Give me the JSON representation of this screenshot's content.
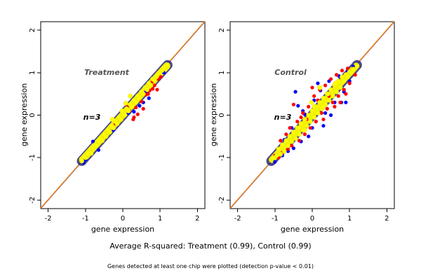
{
  "chart_data": [
    {
      "type": "scatter",
      "title": "Treatment",
      "annotation": "n=3",
      "xlabel": "gene expression",
      "ylabel": "gene expression",
      "xlim": [
        -2.2,
        2.2
      ],
      "ylim": [
        -2.2,
        2.2
      ],
      "xticks": [
        -2,
        -1,
        0,
        1,
        2
      ],
      "yticks": [
        -2,
        -1,
        0,
        1,
        2
      ],
      "reference_line": {
        "slope": 1,
        "intercept": 0,
        "color": "#ff8c00"
      },
      "series": [
        {
          "color": "#0000ff",
          "points": [
            [
              -1.0,
              -1.05
            ],
            [
              -0.8,
              -0.62
            ],
            [
              -0.25,
              -0.35
            ],
            [
              0.3,
              0.08
            ],
            [
              0.45,
              0.22
            ],
            [
              0.62,
              0.55
            ],
            [
              -1.05,
              -1.12
            ],
            [
              0.7,
              0.4
            ],
            [
              -0.65,
              -0.82
            ],
            [
              0.55,
              0.3
            ],
            [
              1.1,
              1.0
            ],
            [
              0.15,
              0.05
            ]
          ]
        },
        {
          "color": "#ff0000",
          "points": [
            [
              0.8,
              0.62
            ],
            [
              0.62,
              0.48
            ],
            [
              0.5,
              0.32
            ],
            [
              0.35,
              0.18
            ],
            [
              0.72,
              0.58
            ],
            [
              0.3,
              -0.05
            ],
            [
              0.95,
              0.85
            ],
            [
              0.6,
              0.65
            ],
            [
              0.4,
              0.02
            ],
            [
              1.02,
              0.9
            ],
            [
              0.18,
              0.1
            ],
            [
              0.85,
              0.7
            ],
            [
              0.55,
              0.15
            ],
            [
              0.92,
              0.6
            ],
            [
              0.45,
              0.4
            ],
            [
              0.28,
              -0.1
            ],
            [
              0.12,
              0.2
            ],
            [
              0.78,
              0.78
            ],
            [
              -0.2,
              -0.2
            ],
            [
              0.68,
              0.5
            ]
          ]
        },
        {
          "color": "#ffff00",
          "points": [
            [
              -1.1,
              -1.08
            ],
            [
              -1.0,
              -1.0
            ],
            [
              -0.9,
              -0.88
            ],
            [
              -0.85,
              -0.9
            ],
            [
              -0.8,
              -0.75
            ],
            [
              -0.75,
              -0.7
            ],
            [
              -0.7,
              -0.72
            ],
            [
              -0.6,
              -0.55
            ],
            [
              -0.55,
              -0.6
            ],
            [
              -0.5,
              -0.45
            ],
            [
              -0.45,
              -0.5
            ],
            [
              -0.4,
              -0.35
            ],
            [
              -0.35,
              -0.4
            ],
            [
              -0.3,
              -0.25
            ],
            [
              -0.25,
              -0.3
            ],
            [
              -0.2,
              -0.15
            ],
            [
              -0.15,
              -0.2
            ],
            [
              -0.1,
              -0.05
            ],
            [
              -0.05,
              -0.1
            ],
            [
              0.0,
              0.05
            ],
            [
              0.05,
              0.0
            ],
            [
              0.1,
              0.15
            ],
            [
              0.15,
              0.1
            ],
            [
              0.2,
              0.25
            ],
            [
              0.25,
              0.2
            ],
            [
              0.3,
              0.35
            ],
            [
              0.35,
              0.3
            ],
            [
              0.4,
              0.45
            ],
            [
              0.45,
              0.4
            ],
            [
              0.5,
              0.55
            ],
            [
              0.55,
              0.5
            ],
            [
              0.6,
              0.65
            ],
            [
              0.65,
              0.6
            ],
            [
              0.7,
              0.75
            ],
            [
              0.75,
              0.7
            ],
            [
              0.8,
              0.85
            ],
            [
              0.85,
              0.82
            ],
            [
              0.9,
              0.9
            ],
            [
              0.95,
              0.98
            ],
            [
              1.0,
              1.02
            ],
            [
              1.05,
              1.05
            ],
            [
              1.1,
              1.12
            ],
            [
              1.15,
              1.15
            ],
            [
              1.2,
              1.18
            ],
            [
              -0.95,
              -0.9
            ],
            [
              -0.65,
              -0.6
            ],
            [
              -0.02,
              0.1
            ],
            [
              0.2,
              0.45
            ],
            [
              0.08,
              0.28
            ],
            [
              -0.28,
              -0.1
            ]
          ]
        }
      ]
    },
    {
      "type": "scatter",
      "title": "Control",
      "annotation": "n=3",
      "xlabel": "gene expression",
      "ylabel": "gene expression",
      "xlim": [
        -2.2,
        2.2
      ],
      "ylim": [
        -2.2,
        2.2
      ],
      "xticks": [
        -2,
        -1,
        0,
        1,
        2
      ],
      "yticks": [
        -2,
        -1,
        0,
        1,
        2
      ],
      "reference_line": {
        "slope": 1,
        "intercept": 0,
        "color": "#ff8c00"
      },
      "series": [
        {
          "color": "#0000ff",
          "points": [
            [
              -1.0,
              -1.1
            ],
            [
              -0.75,
              -0.58
            ],
            [
              -0.8,
              -0.95
            ],
            [
              -0.5,
              -0.78
            ],
            [
              -0.55,
              -0.3
            ],
            [
              -0.3,
              -0.62
            ],
            [
              -0.2,
              0.02
            ],
            [
              0.0,
              -0.3
            ],
            [
              0.22,
              0.58
            ],
            [
              0.35,
              0.05
            ],
            [
              0.45,
              0.8
            ],
            [
              0.6,
              0.3
            ],
            [
              0.72,
              0.92
            ],
            [
              0.85,
              0.55
            ],
            [
              0.95,
              1.05
            ],
            [
              1.0,
              0.8
            ],
            [
              0.05,
              0.35
            ],
            [
              -0.38,
              0.22
            ],
            [
              -0.45,
              0.55
            ],
            [
              0.5,
              0.0
            ],
            [
              0.78,
              0.3
            ],
            [
              -0.65,
              -0.85
            ],
            [
              0.3,
              -0.25
            ],
            [
              1.1,
              1.15
            ],
            [
              0.9,
              0.3
            ],
            [
              -0.1,
              -0.5
            ],
            [
              0.15,
              0.75
            ],
            [
              -0.25,
              0.1
            ]
          ]
        },
        {
          "color": "#ff0000",
          "points": [
            [
              -1.0,
              -0.95
            ],
            [
              -0.9,
              -1.0
            ],
            [
              -0.85,
              -0.6
            ],
            [
              -0.8,
              -0.88
            ],
            [
              -0.7,
              -0.45
            ],
            [
              -0.65,
              -0.8
            ],
            [
              -0.6,
              -0.3
            ],
            [
              -0.55,
              -0.72
            ],
            [
              -0.4,
              -0.15
            ],
            [
              -0.35,
              -0.6
            ],
            [
              -0.25,
              0.05
            ],
            [
              -0.2,
              -0.45
            ],
            [
              -0.1,
              0.2
            ],
            [
              -0.05,
              -0.3
            ],
            [
              0.05,
              0.45
            ],
            [
              0.1,
              -0.15
            ],
            [
              0.2,
              0.6
            ],
            [
              0.25,
              0.05
            ],
            [
              0.35,
              0.7
            ],
            [
              0.4,
              0.15
            ],
            [
              0.5,
              0.85
            ],
            [
              0.55,
              0.3
            ],
            [
              0.65,
              0.95
            ],
            [
              0.7,
              0.45
            ],
            [
              0.8,
              1.05
            ],
            [
              0.85,
              0.6
            ],
            [
              0.95,
              1.1
            ],
            [
              1.0,
              0.75
            ],
            [
              1.1,
              1.1
            ],
            [
              1.15,
              0.95
            ],
            [
              0.0,
              0.65
            ],
            [
              0.3,
              -0.1
            ],
            [
              -0.5,
              0.25
            ],
            [
              0.6,
              0.2
            ],
            [
              0.9,
              0.5
            ],
            [
              0.75,
              0.3
            ],
            [
              -0.3,
              -0.05
            ],
            [
              0.45,
              0.45
            ],
            [
              0.15,
              0.35
            ],
            [
              -0.15,
              -0.1
            ]
          ]
        },
        {
          "color": "#ffff00",
          "points": [
            [
              -1.05,
              -1.0
            ],
            [
              -0.95,
              -0.95
            ],
            [
              -0.9,
              -0.8
            ],
            [
              -0.85,
              -0.92
            ],
            [
              -0.8,
              -0.7
            ],
            [
              -0.75,
              -0.85
            ],
            [
              -0.7,
              -0.6
            ],
            [
              -0.65,
              -0.72
            ],
            [
              -0.6,
              -0.5
            ],
            [
              -0.55,
              -0.62
            ],
            [
              -0.5,
              -0.4
            ],
            [
              -0.45,
              -0.55
            ],
            [
              -0.4,
              -0.3
            ],
            [
              -0.35,
              -0.45
            ],
            [
              -0.3,
              -0.2
            ],
            [
              -0.25,
              -0.35
            ],
            [
              -0.2,
              -0.1
            ],
            [
              -0.15,
              -0.25
            ],
            [
              -0.1,
              0.0
            ],
            [
              -0.05,
              -0.15
            ],
            [
              0.0,
              0.1
            ],
            [
              0.05,
              -0.05
            ],
            [
              0.1,
              0.2
            ],
            [
              0.15,
              0.05
            ],
            [
              0.2,
              0.3
            ],
            [
              0.25,
              0.15
            ],
            [
              0.3,
              0.4
            ],
            [
              0.35,
              0.25
            ],
            [
              0.4,
              0.5
            ],
            [
              0.45,
              0.35
            ],
            [
              0.5,
              0.6
            ],
            [
              0.55,
              0.45
            ],
            [
              0.6,
              0.7
            ],
            [
              0.65,
              0.55
            ],
            [
              0.7,
              0.8
            ],
            [
              0.75,
              0.65
            ],
            [
              0.8,
              0.9
            ],
            [
              0.85,
              0.8
            ],
            [
              0.9,
              0.95
            ],
            [
              0.95,
              0.9
            ],
            [
              1.0,
              1.02
            ],
            [
              1.05,
              1.0
            ],
            [
              1.1,
              1.08
            ],
            [
              1.2,
              1.15
            ],
            [
              -0.35,
              -0.3
            ],
            [
              0.05,
              0.2
            ],
            [
              0.42,
              0.5
            ],
            [
              -0.2,
              -0.35
            ],
            [
              0.3,
              0.2
            ],
            [
              0.62,
              0.75
            ],
            [
              -0.02,
              0.3
            ],
            [
              0.2,
              0.65
            ]
          ]
        }
      ]
    }
  ],
  "footer": {
    "r_squared": "Average R-squared: Treatment (0.99), Control (0.99)",
    "note": "Genes detected at least one chip were plotted (detection p-value < 0.01)"
  }
}
